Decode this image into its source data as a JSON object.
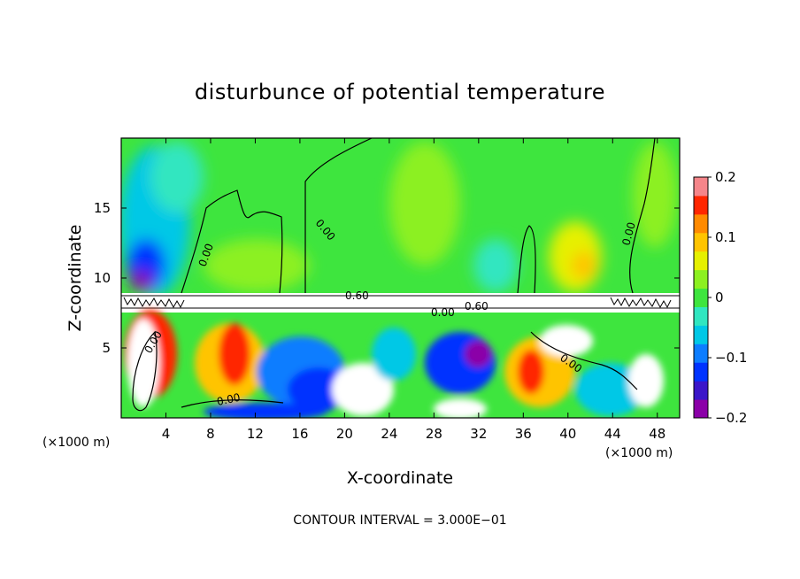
{
  "chart_data": {
    "type": "heatmap",
    "title": "disturbunce of potential temperature",
    "xlabel": "X-coordinate",
    "ylabel": "Z-coordinate",
    "x_unit_left": "(×1000 m)",
    "x_unit_right": "(×1000 m)",
    "xlim": [
      0,
      50
    ],
    "ylim": [
      0,
      20
    ],
    "x_ticks": [
      4,
      8,
      12,
      16,
      20,
      24,
      28,
      32,
      36,
      40,
      44,
      48
    ],
    "y_ticks": [
      5,
      10,
      15
    ],
    "colorbar": {
      "range": [
        -0.2,
        0.2
      ],
      "ticks": [
        "0.2",
        "0.1",
        "0",
        "−0.1",
        "−0.2"
      ],
      "colors": [
        "#8b00a8",
        "#3b16c9",
        "#0033ff",
        "#0d7dff",
        "#00c8e6",
        "#30e6c0",
        "#3ee53e",
        "#8cf020",
        "#e6f000",
        "#ffc400",
        "#ff8a00",
        "#ff2600",
        "#f5858a"
      ]
    },
    "contour_interval": "CONTOUR INTERVAL = 3.000E−01",
    "contour_labels": [
      "0.00",
      "0.00",
      "0.00",
      "0.00",
      "0.60",
      "0.60",
      "0.00",
      "0.00",
      "0.00"
    ]
  }
}
